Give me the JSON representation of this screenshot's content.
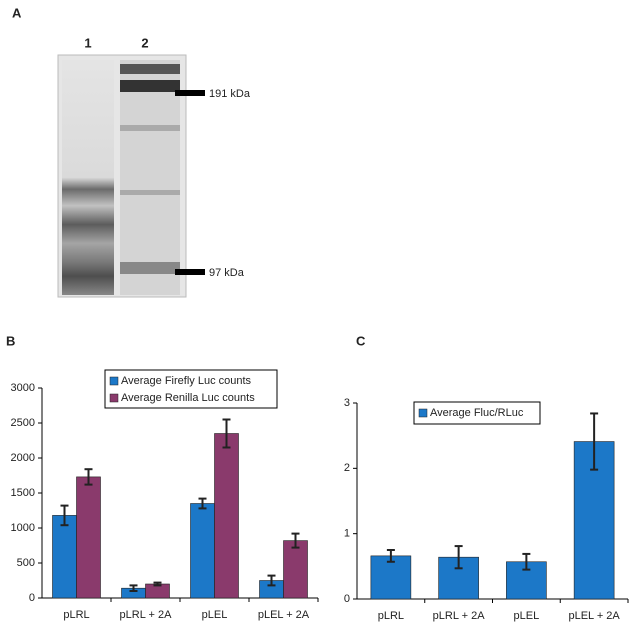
{
  "panel_a": {
    "label": "A",
    "lanes": [
      "1",
      "2"
    ],
    "markers": [
      "191 kDa",
      "97 kDa"
    ]
  },
  "chart_data": [
    {
      "type": "bar",
      "label": "B",
      "categories": [
        "pLRL",
        "pLRL + 2A",
        "pLEL",
        "pLEL + 2A"
      ],
      "series": [
        {
          "name": "Average Firefly Luc counts",
          "color": "#1c78c8",
          "values": [
            1180,
            140,
            1350,
            250
          ],
          "errors": [
            140,
            40,
            70,
            70
          ]
        },
        {
          "name": "Average Renilla Luc counts",
          "color": "#8a3a6c",
          "values": [
            1730,
            200,
            2350,
            820
          ],
          "errors": [
            110,
            20,
            200,
            100
          ]
        }
      ],
      "ylim": [
        0,
        3000
      ],
      "yticks": [
        0,
        500,
        1000,
        1500,
        2000,
        2500,
        3000
      ]
    },
    {
      "type": "bar",
      "label": "C",
      "categories": [
        "pLRL",
        "pLRL + 2A",
        "pLEL",
        "pLEL + 2A"
      ],
      "series": [
        {
          "name": "Average Fluc/RLuc",
          "color": "#1c78c8",
          "values": [
            0.66,
            0.64,
            0.57,
            2.41
          ],
          "errors": [
            0.09,
            0.17,
            0.12,
            0.43
          ]
        }
      ],
      "ylim": [
        0,
        3
      ],
      "yticks": [
        0,
        1,
        2,
        3
      ]
    }
  ]
}
